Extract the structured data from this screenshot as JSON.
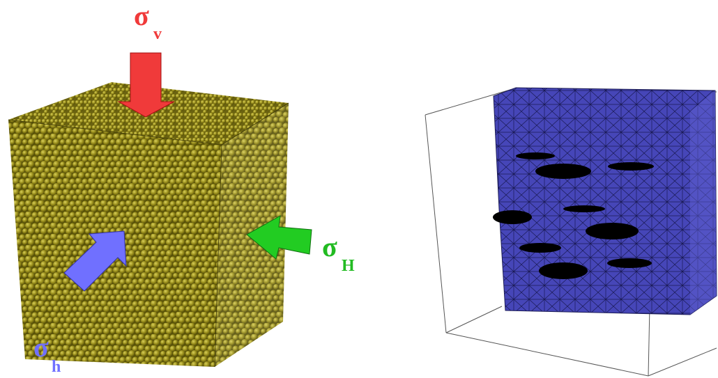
{
  "labels": [
    {
      "symbol": "σ",
      "subscript": "v"
    },
    {
      "symbol": "σ",
      "subscript": "H"
    },
    {
      "symbol": "σ",
      "subscript": "h"
    }
  ]
}
